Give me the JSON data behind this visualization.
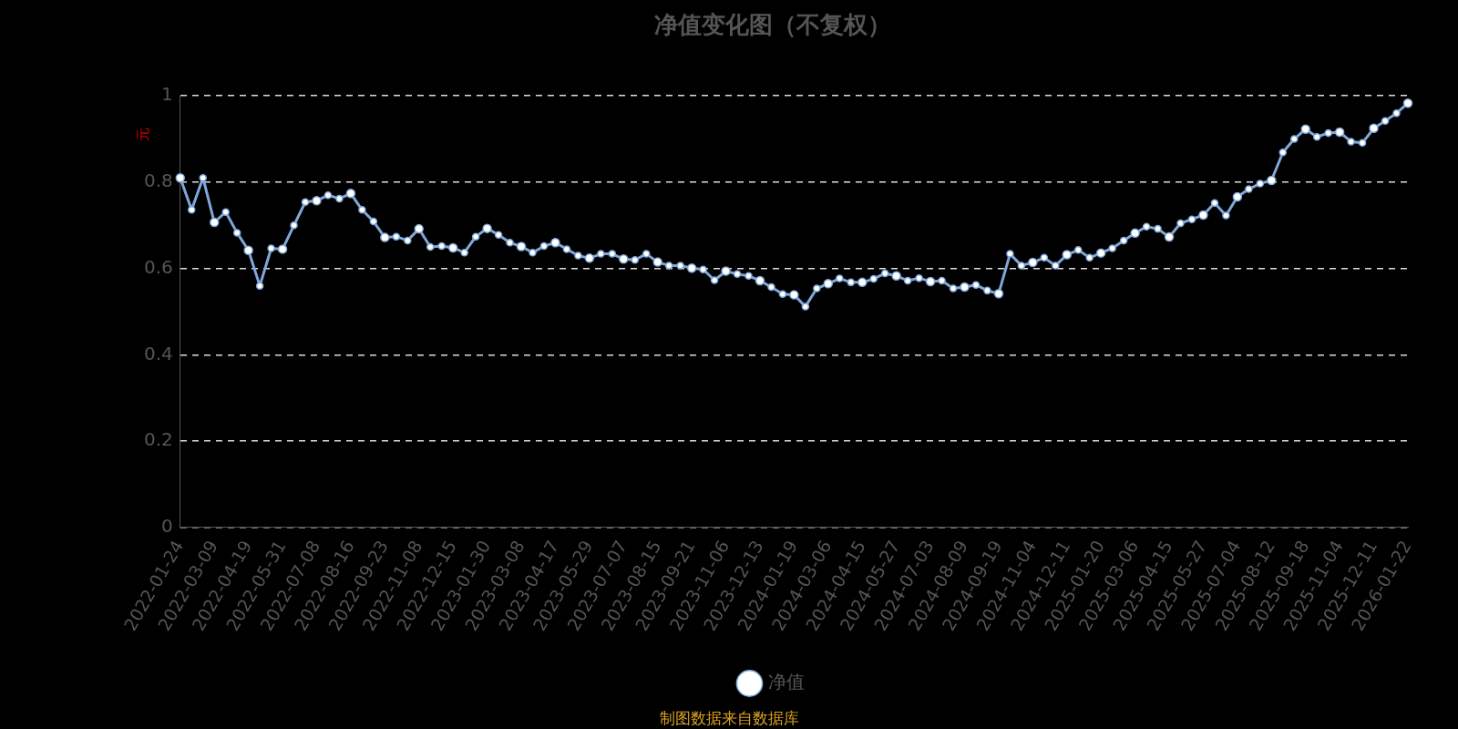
{
  "chart_data": {
    "type": "line",
    "title": "净值变化图（不复权）",
    "ylabel": "元",
    "categories": [
      "2022-01-24",
      null,
      null,
      "2022-03-09",
      null,
      null,
      "2022-04-19",
      null,
      null,
      "2022-05-31",
      null,
      null,
      "2022-07-08",
      null,
      null,
      "2022-08-16",
      null,
      null,
      "2022-09-23",
      null,
      null,
      "2022-11-08",
      null,
      null,
      "2022-12-15",
      null,
      null,
      "2023-01-30",
      null,
      null,
      "2023-03-08",
      null,
      null,
      "2023-04-17",
      null,
      null,
      "2023-05-29",
      null,
      null,
      "2023-07-07",
      null,
      null,
      "2023-08-15",
      null,
      null,
      "2023-09-21",
      null,
      null,
      "2023-11-06",
      null,
      null,
      "2023-12-13",
      null,
      null,
      "2024-01-19",
      null,
      null,
      "2024-03-06",
      null,
      null,
      "2024-04-15",
      null,
      null,
      "2024-05-27",
      null,
      null,
      "2024-07-03",
      null,
      null,
      "2024-08-09",
      null,
      null,
      "2024-09-19",
      null,
      null,
      "2024-11-04",
      null,
      null,
      "2024-12-11",
      null,
      null,
      "2025-01-20",
      null,
      null,
      "2025-03-06",
      null,
      null,
      "2025-04-15",
      null,
      null,
      "2025-05-27",
      null,
      null,
      "2025-07-04",
      null,
      null,
      "2025-08-12",
      null,
      null,
      "2025-09-18",
      null,
      null,
      "2025-11-04",
      null,
      null,
      "2025-12-11",
      null,
      null,
      "2026-01-22"
    ],
    "series": [
      {
        "name": "净值",
        "color": "#7fa7d9",
        "values": [
          0.81,
          0.736,
          0.81,
          0.707,
          0.731,
          0.683,
          0.642,
          0.56,
          0.647,
          0.645,
          0.7,
          0.754,
          0.757,
          0.77,
          0.762,
          0.774,
          0.736,
          0.709,
          0.672,
          0.674,
          0.665,
          0.692,
          0.65,
          0.652,
          0.648,
          0.637,
          0.674,
          0.693,
          0.678,
          0.66,
          0.651,
          0.637,
          0.652,
          0.66,
          0.645,
          0.63,
          0.624,
          0.634,
          0.634,
          0.622,
          0.62,
          0.634,
          0.615,
          0.607,
          0.607,
          0.601,
          0.598,
          0.573,
          0.594,
          0.587,
          0.583,
          0.572,
          0.557,
          0.541,
          0.539,
          0.512,
          0.554,
          0.565,
          0.577,
          0.568,
          0.568,
          0.576,
          0.589,
          0.583,
          0.572,
          0.578,
          0.57,
          0.572,
          0.554,
          0.557,
          0.562,
          0.549,
          0.542,
          0.634,
          0.607,
          0.614,
          0.625,
          0.607,
          0.632,
          0.643,
          0.625,
          0.636,
          0.647,
          0.665,
          0.682,
          0.697,
          0.692,
          0.673,
          0.705,
          0.714,
          0.724,
          0.752,
          0.723,
          0.766,
          0.784,
          0.797,
          0.804,
          0.869,
          0.9,
          0.923,
          0.905,
          0.914,
          0.916,
          0.894,
          0.891,
          0.925,
          0.942,
          0.96,
          0.983
        ]
      }
    ],
    "ylim": [
      0,
      1
    ],
    "yticks": [
      0,
      0.2,
      0.4,
      0.6,
      0.8,
      1
    ],
    "grid": "y",
    "legend": "bottom",
    "marker": "circle",
    "line_style": "solid",
    "annotations": [
      "制图数据来自数据库"
    ]
  }
}
